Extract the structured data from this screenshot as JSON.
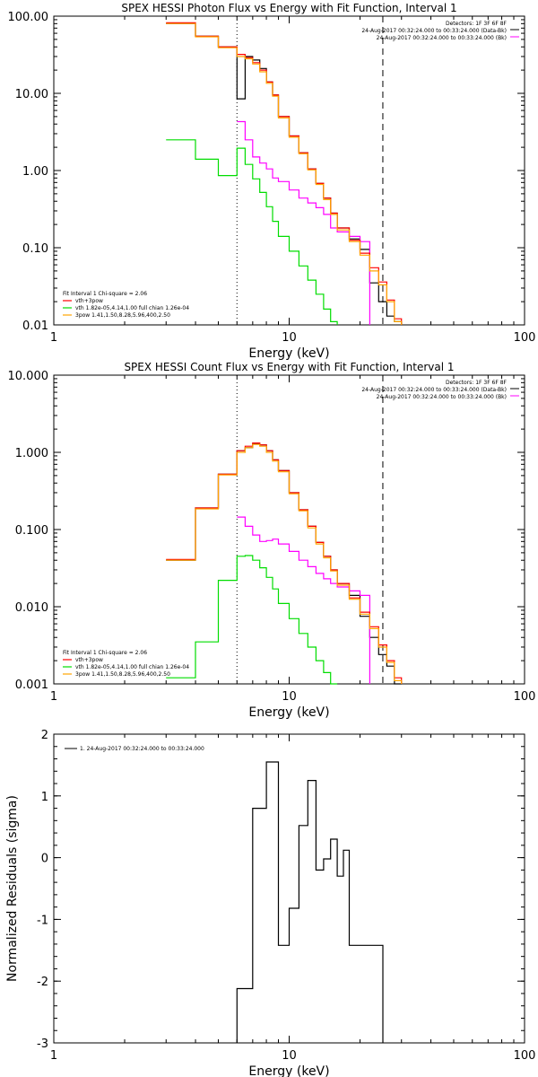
{
  "chart_data": [
    {
      "type": "line",
      "title": "SPEX HESSI Photon Flux vs Energy with Fit Function, Interval 1",
      "xlabel": "Energy (keV)",
      "ylabel": "",
      "xscale": "log",
      "yscale": "log",
      "xlim": [
        1,
        100
      ],
      "ylim": [
        0.01,
        100
      ],
      "xticks": [
        {
          "v": 1,
          "label": "1"
        },
        {
          "v": 10,
          "label": "10"
        },
        {
          "v": 100,
          "label": "100"
        }
      ],
      "yticks": [
        {
          "v": 0.01,
          "label": "0.01"
        },
        {
          "v": 0.1,
          "label": "0.10"
        },
        {
          "v": 1,
          "label": "1.00"
        },
        {
          "v": 10,
          "label": "10.00"
        },
        {
          "v": 100,
          "label": "100.00"
        }
      ],
      "vlines": [
        {
          "x": 6,
          "style": "dotted"
        },
        {
          "x": 25,
          "style": "dashed"
        }
      ],
      "info": [
        "Detectors: 1F 3F 6F 8F",
        "24-Aug-2017 00:32:24.000 to 00:33:24.000 (Data-Bk)",
        "24-Aug-2017 00:32:24.000 to 00:33:24.000 (Bk)"
      ],
      "legend_title": "Fit Interval 1   Chi-square = 2.06",
      "legend": [
        {
          "label": "vth+3pow",
          "color": "#ff0000"
        },
        {
          "label": "vth 1.82e-05,4.14,1.00  full chian 1.26e-04",
          "color": "#00dd00"
        },
        {
          "label": "3pow 1.41,1.50,8.28,5.96,400,2.50",
          "color": "#ffa500"
        }
      ],
      "edges": [
        3,
        4,
        5,
        6,
        6.5,
        7,
        7.5,
        8,
        8.5,
        9,
        10,
        11,
        12,
        13,
        14,
        15,
        16,
        18,
        20,
        22,
        24,
        26,
        28,
        30
      ],
      "series": [
        {
          "role": "data",
          "color": "#000000",
          "values": [
            80,
            55,
            40,
            8.5,
            30,
            27,
            21,
            14,
            9.5,
            5.0,
            2.8,
            1.7,
            1.05,
            0.68,
            0.44,
            0.28,
            0.18,
            0.13,
            0.095,
            0.035,
            0.02,
            0.013,
            0.011
          ]
        },
        {
          "role": "background",
          "color": "#ff00ff",
          "values": [
            null,
            null,
            null,
            4.3,
            2.5,
            1.5,
            1.25,
            1.05,
            0.8,
            0.72,
            0.56,
            0.44,
            0.38,
            0.33,
            0.27,
            0.18,
            0.16,
            0.14,
            0.12,
            null,
            null,
            null,
            null
          ]
        },
        {
          "role": "vth",
          "color": "#00dd00",
          "values": [
            2.5,
            1.4,
            0.86,
            1.95,
            1.2,
            0.78,
            0.52,
            0.34,
            0.22,
            0.14,
            0.09,
            0.058,
            0.038,
            0.025,
            0.016,
            0.011,
            null,
            null,
            null,
            null,
            null,
            null,
            null
          ]
        },
        {
          "role": "model",
          "color": "#ff0000",
          "values": [
            82,
            55,
            40,
            32,
            29,
            25,
            20,
            14,
            9.5,
            5.0,
            2.8,
            1.7,
            1.05,
            0.68,
            0.44,
            0.28,
            0.18,
            0.125,
            0.085,
            0.055,
            0.036,
            0.021,
            0.012
          ]
        },
        {
          "role": "3pow",
          "color": "#ffa500",
          "values": [
            80,
            54,
            39,
            30,
            28,
            24,
            19,
            13.5,
            9.2,
            4.8,
            2.7,
            1.65,
            1.02,
            0.66,
            0.42,
            0.27,
            0.17,
            0.12,
            0.08,
            0.05,
            0.033,
            0.02,
            0.011
          ]
        }
      ]
    },
    {
      "type": "line",
      "title": "SPEX HESSI Count Flux vs Energy with Fit Function, Interval 1",
      "xlabel": "Energy (keV)",
      "ylabel": "",
      "xscale": "log",
      "yscale": "log",
      "xlim": [
        1,
        100
      ],
      "ylim": [
        0.001,
        10
      ],
      "xticks": [
        {
          "v": 1,
          "label": "1"
        },
        {
          "v": 10,
          "label": "10"
        },
        {
          "v": 100,
          "label": "100"
        }
      ],
      "yticks": [
        {
          "v": 0.001,
          "label": "0.001"
        },
        {
          "v": 0.01,
          "label": "0.010"
        },
        {
          "v": 0.1,
          "label": "0.100"
        },
        {
          "v": 1,
          "label": "1.000"
        },
        {
          "v": 10,
          "label": "10.000"
        }
      ],
      "vlines": [
        {
          "x": 6,
          "style": "dotted"
        },
        {
          "x": 25,
          "style": "dashed"
        }
      ],
      "info": [
        "Detectors: 1F 3F 6F 8F",
        "24-Aug-2017 00:32:24.000 to 00:33:24.000 (Data-Bk)",
        "24-Aug-2017 00:32:24.000 to 00:33:24.000 (Bk)"
      ],
      "legend_title": "Fit Interval 1   Chi-square = 2.06",
      "legend": [
        {
          "label": "vth+3pow",
          "color": "#ff0000"
        },
        {
          "label": "vth 1.82e-05,4.14,1.00  full chian 1.26e-04",
          "color": "#00dd00"
        },
        {
          "label": "3pow 1.41,1.50,8.28,5.96,400,2.50",
          "color": "#ffa500"
        }
      ],
      "edges": [
        3,
        4,
        5,
        6,
        6.5,
        7,
        7.5,
        8,
        8.5,
        9,
        10,
        11,
        12,
        13,
        14,
        15,
        16,
        18,
        20,
        22,
        24,
        26,
        28,
        30
      ],
      "series": [
        {
          "role": "data",
          "color": "#000000",
          "values": [
            0.04,
            0.19,
            0.52,
            1.05,
            1.15,
            1.3,
            1.25,
            1.05,
            0.8,
            0.58,
            0.3,
            0.18,
            0.11,
            0.068,
            0.045,
            0.03,
            0.02,
            0.014,
            0.0075,
            0.004,
            0.0024,
            0.0017,
            0.001
          ]
        },
        {
          "role": "background",
          "color": "#ff00ff",
          "values": [
            null,
            null,
            null,
            0.145,
            0.11,
            0.085,
            0.07,
            0.072,
            0.075,
            0.065,
            0.052,
            0.04,
            0.033,
            0.027,
            0.023,
            0.02,
            0.018,
            0.016,
            0.014,
            null,
            null,
            null,
            null
          ]
        },
        {
          "role": "vth",
          "color": "#00dd00",
          "values": [
            0.0012,
            0.0035,
            0.022,
            0.045,
            0.046,
            0.04,
            0.032,
            0.024,
            0.017,
            0.011,
            0.007,
            0.0045,
            0.003,
            0.002,
            0.0014,
            0.001,
            null,
            null,
            null,
            null,
            null,
            null,
            null
          ]
        },
        {
          "role": "model",
          "color": "#ff0000",
          "values": [
            0.041,
            0.19,
            0.52,
            1.05,
            1.2,
            1.32,
            1.25,
            1.05,
            0.8,
            0.58,
            0.3,
            0.18,
            0.11,
            0.068,
            0.045,
            0.03,
            0.02,
            0.013,
            0.0085,
            0.0055,
            0.0032,
            0.002,
            0.0012
          ]
        },
        {
          "role": "3pow",
          "color": "#ffa500",
          "values": [
            0.04,
            0.185,
            0.51,
            1.0,
            1.15,
            1.27,
            1.2,
            1.0,
            0.77,
            0.56,
            0.29,
            0.175,
            0.105,
            0.065,
            0.043,
            0.029,
            0.019,
            0.0125,
            0.008,
            0.0052,
            0.003,
            0.0019,
            0.0011
          ]
        }
      ]
    },
    {
      "type": "line",
      "title": "",
      "xlabel": "Energy (keV)",
      "ylabel": "Normalized Residuals (sigma)",
      "xscale": "log",
      "yscale": "linear",
      "xlim": [
        1,
        100
      ],
      "ylim": [
        -3,
        2
      ],
      "xticks": [
        {
          "v": 1,
          "label": "1"
        },
        {
          "v": 10,
          "label": "10"
        },
        {
          "v": 100,
          "label": "100"
        }
      ],
      "yticks": [
        {
          "v": -3,
          "label": "-3"
        },
        {
          "v": -2,
          "label": "-2"
        },
        {
          "v": -1,
          "label": "-1"
        },
        {
          "v": 0,
          "label": "0"
        },
        {
          "v": 1,
          "label": "1"
        },
        {
          "v": 2,
          "label": "2"
        }
      ],
      "legend": [
        {
          "label": "1. 24-Aug-2017 00:32:24.000 to 00:33:24.000",
          "color": "#000000"
        }
      ],
      "edges": [
        6,
        7,
        8,
        9,
        10,
        11,
        12,
        13,
        14,
        15,
        16,
        17,
        18,
        20,
        22,
        25
      ],
      "series": [
        {
          "role": "residuals",
          "color": "#000000",
          "values": [
            -2.12,
            0.8,
            1.55,
            -1.42,
            -0.82,
            0.52,
            1.25,
            -0.2,
            -0.02,
            0.3,
            -0.3,
            0.12,
            -1.42,
            -1.42,
            -1.42
          ]
        }
      ]
    }
  ]
}
